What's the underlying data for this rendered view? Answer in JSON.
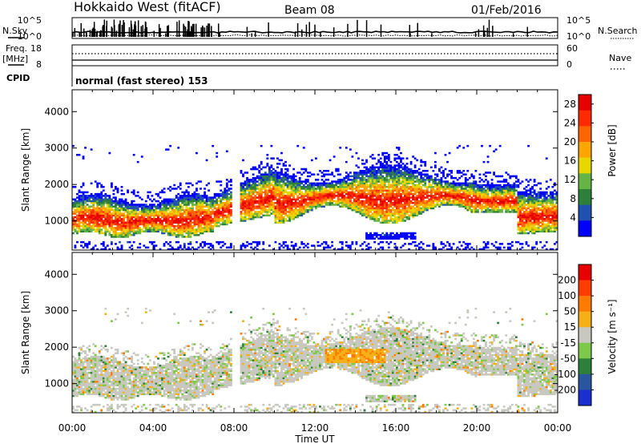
{
  "header": {
    "station": "Hokkaido West (fitACF)",
    "beam": "Beam 08",
    "date": "01/Feb/2016"
  },
  "aux_labels": {
    "nsky": "N.Sky",
    "nsearch": "N.Search",
    "freq": "Freq.",
    "freq_unit": "[MHz]",
    "nave": "Nave",
    "cpid": "CPID",
    "cpid_value": "normal (fast stereo) 153",
    "noise_ticks_left": [
      "10^5",
      "10^0"
    ],
    "noise_ticks_right": [
      "10^5",
      "10^0"
    ],
    "freq_ticks": [
      "18",
      "8"
    ],
    "nave_ticks": [
      "60",
      "0"
    ]
  },
  "colors": {
    "power": [
      "#0000ff",
      "#2050b0",
      "#2e7f3a",
      "#66b446",
      "#e8d800",
      "#ffa500",
      "#ff6400",
      "#ff2a00",
      "#e60000"
    ],
    "velocity": [
      "#1a2fd0",
      "#2a56a0",
      "#2e7f3a",
      "#7ec84a",
      "#c8c8c0",
      "#f5b018",
      "#ff7a00",
      "#ff3c00",
      "#e60000"
    ]
  },
  "chart_data": [
    {
      "type": "heatmap",
      "title": "",
      "xlabel": "",
      "ylabel": "Slant Range [km]",
      "x_ticks": [
        "00:00",
        "04:00",
        "08:00",
        "12:00",
        "16:00",
        "20:00",
        "00:00"
      ],
      "y_ticks": [
        "1000",
        "2000",
        "3000",
        "4000"
      ],
      "ylim": [
        200,
        4600
      ],
      "xlim_hours": [
        0,
        24
      ],
      "colorbar": {
        "label": "Power [dB]",
        "ticks": [
          "4",
          "8",
          "12",
          "16",
          "20",
          "24",
          "28"
        ],
        "range": [
          0,
          30
        ]
      }
    },
    {
      "type": "heatmap",
      "title": "",
      "xlabel": "Time UT",
      "ylabel": "Slant Range [km]",
      "x_ticks": [
        "00:00",
        "04:00",
        "08:00",
        "12:00",
        "16:00",
        "20:00",
        "00:00"
      ],
      "y_ticks": [
        "1000",
        "2000",
        "3000",
        "4000"
      ],
      "ylim": [
        200,
        4600
      ],
      "xlim_hours": [
        0,
        24
      ],
      "colorbar": {
        "label": "Velocity [m s⁻¹]",
        "ticks": [
          "200",
          "100",
          "50",
          "15",
          "-15",
          "-50",
          "-100",
          "-200"
        ],
        "range": [
          -250,
          250
        ]
      }
    }
  ]
}
